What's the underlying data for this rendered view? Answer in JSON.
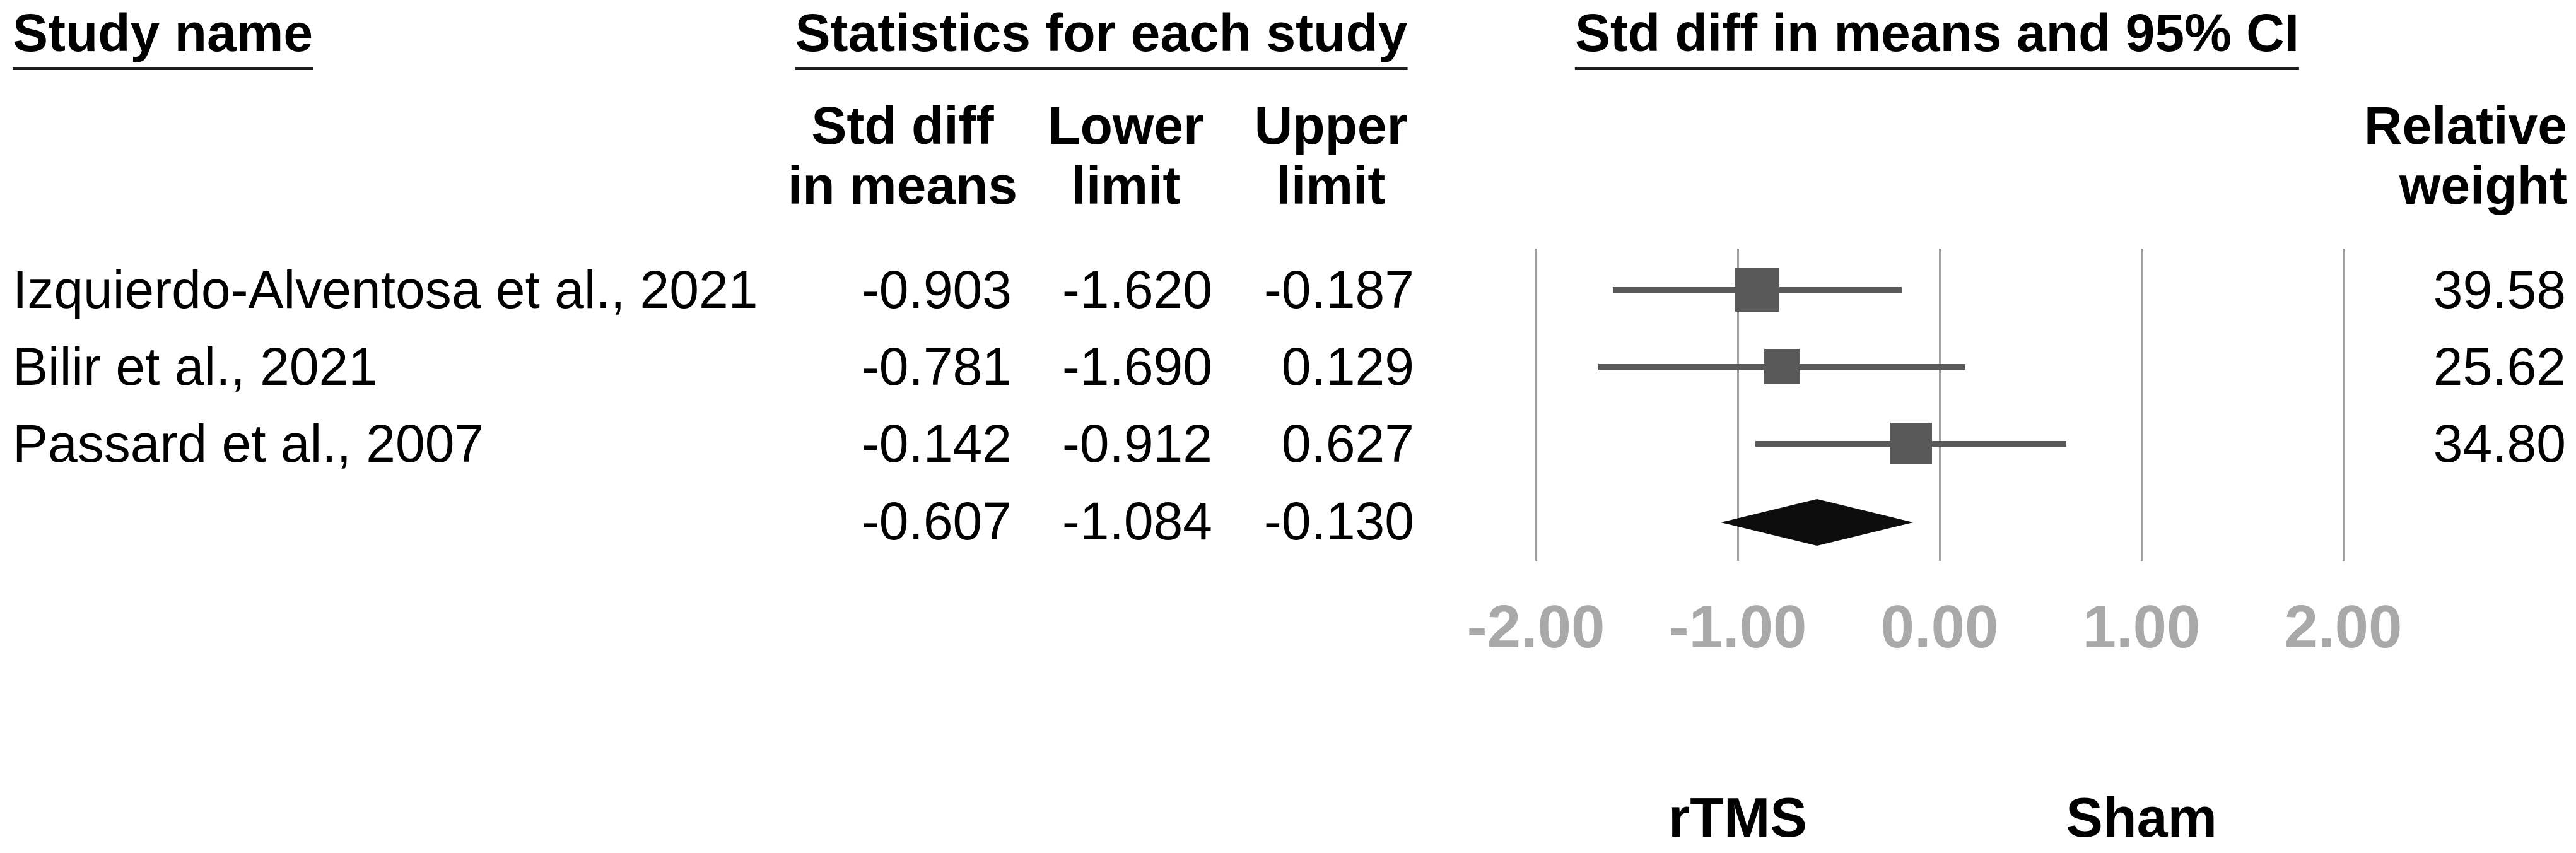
{
  "columns": {
    "study": {
      "header": "Study name"
    },
    "stats": {
      "header": "Statistics for each study",
      "subcolumns": [
        {
          "line1": "Std diff",
          "line2": "in means"
        },
        {
          "line1": "Lower",
          "line2": "limit"
        },
        {
          "line1": "Upper",
          "line2": "limit"
        }
      ]
    },
    "plot": {
      "header": "Std diff in means and 95% CI"
    },
    "weight": {
      "line1": "Relative",
      "line2": "weight"
    }
  },
  "rows": [
    {
      "name": "Izquierdo-Alventosa et al., 2021",
      "std_diff": "-0.903",
      "lower": "-1.620",
      "upper": "-0.187",
      "weight": "39.58"
    },
    {
      "name": "Bilir et al., 2021",
      "std_diff": "-0.781",
      "lower": "-1.690",
      "upper": "0.129",
      "weight": "25.62"
    },
    {
      "name": "Passard et al., 2007",
      "std_diff": "-0.142",
      "lower": "-0.912",
      "upper": "0.627",
      "weight": "34.80"
    },
    {
      "name": "",
      "std_diff": "-0.607",
      "lower": "-1.084",
      "upper": "-0.130",
      "weight": ""
    }
  ],
  "chart_data": {
    "type": "forest",
    "title": "Std diff in means and 95% CI",
    "studies": [
      {
        "name": "Izquierdo-Alventosa et al., 2021",
        "mean": -0.903,
        "lower": -1.62,
        "upper": -0.187,
        "weight": 39.58
      },
      {
        "name": "Bilir et al., 2021",
        "mean": -0.781,
        "lower": -1.69,
        "upper": 0.129,
        "weight": 25.62
      },
      {
        "name": "Passard et al., 2007",
        "mean": -0.142,
        "lower": -0.912,
        "upper": 0.627,
        "weight": 34.8
      }
    ],
    "pooled": {
      "mean": -0.607,
      "lower": -1.084,
      "upper": -0.13
    },
    "axis": {
      "ticks": [
        -2,
        -1,
        0,
        1,
        2
      ],
      "tick_labels": [
        "-2.00",
        "-1.00",
        "0.00",
        "1.00",
        "2.00"
      ],
      "xlim": [
        -2.5,
        2.5
      ],
      "grid": true
    },
    "group_labels": {
      "left": "rTMS",
      "right": "Sham"
    },
    "legend_position": "none",
    "colors": {
      "marker": "#595959",
      "ci_line": "#595959",
      "diamond": "#0d0d0d",
      "gridline": "#9f9f9f",
      "axis_label": "#a9a9a9",
      "text": "#000000"
    }
  }
}
